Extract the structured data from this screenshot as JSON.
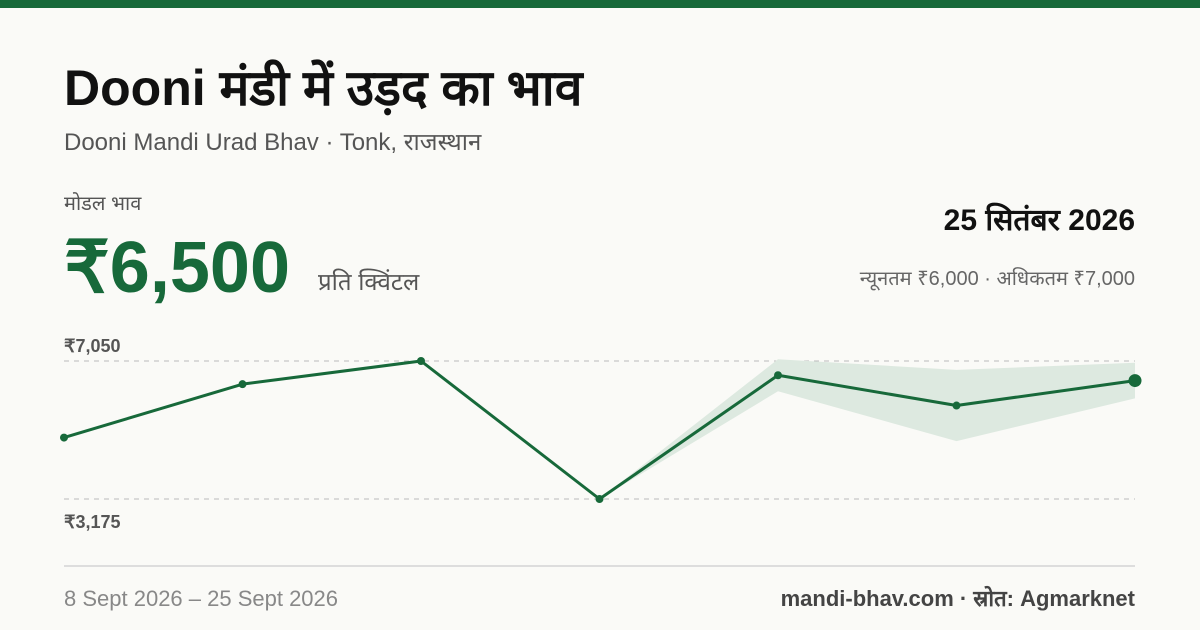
{
  "title": "Dooni मंडी में उड़द का भाव",
  "subtitle": "Dooni Mandi Urad Bhav · Tonk, राजस्थान",
  "summary": {
    "label": "मोडल भाव",
    "price": "₹6,500",
    "unit": "प्रति क्विंटल",
    "date": "25 सितंबर 2026",
    "range": "न्यूनतम ₹6,000 · अधिकतम ₹7,000"
  },
  "chart_data": {
    "type": "line",
    "categories": [
      null,
      null,
      null,
      null,
      null,
      null,
      null
    ],
    "values": [
      4900,
      6400,
      7050,
      3175,
      6650,
      5800,
      6500
    ],
    "min_values": [
      null,
      null,
      null,
      3175,
      6200,
      4800,
      6000
    ],
    "max_values": [
      null,
      null,
      null,
      3175,
      7100,
      6800,
      7000
    ],
    "color": "#17693a",
    "band_color": "#dde9e0",
    "ylim": [
      3175,
      7050
    ],
    "yticks": [
      {
        "value": 7050,
        "label": "₹7,050"
      },
      {
        "value": 3175,
        "label": "₹3,175"
      }
    ],
    "grid": true
  },
  "footer": {
    "dates": "8 Sept 2026 – 25 Sept 2026",
    "source": "mandi-bhav.com · स्रोत: Agmarknet"
  }
}
